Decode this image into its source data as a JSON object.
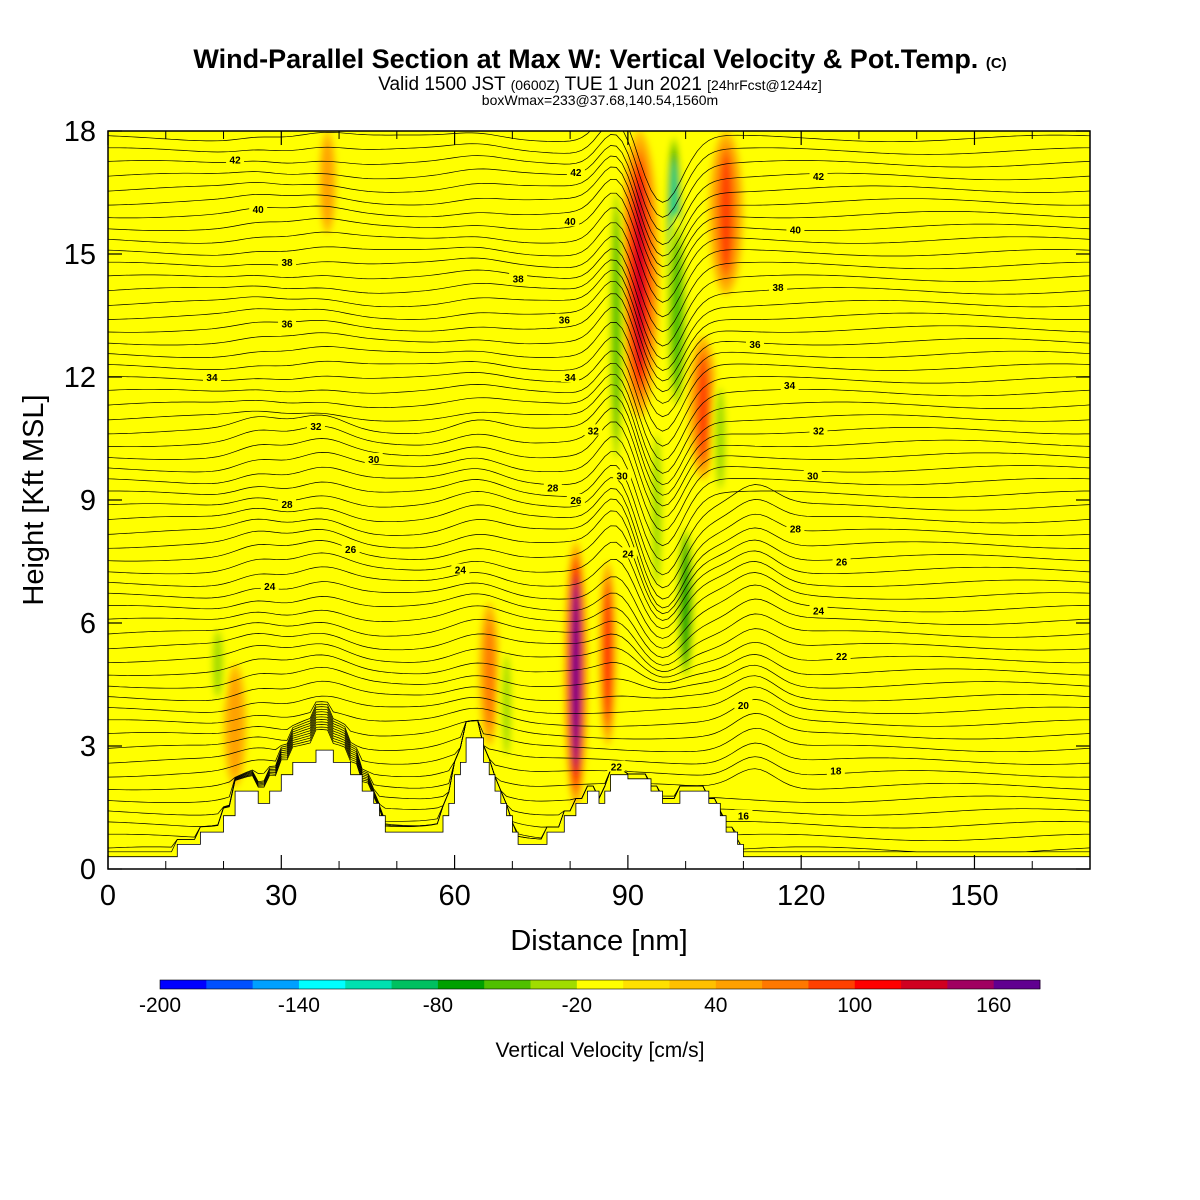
{
  "header": {
    "title_main": "Wind-Parallel Section at Max W: Vertical Velocity & Pot.Temp.",
    "title_mark": "(C)",
    "subtitle_a": "Valid 1500 JST",
    "subtitle_b": "(0600Z)",
    "subtitle_c": "TUE 1 Jun 2021",
    "subtitle_d": "[24hrFcst@1244z]",
    "subtitle2": "boxWmax=233@37.68,140.54,1560m"
  },
  "colorbar": {
    "label": "Vertical Velocity [cm/s]",
    "tick_labels": [
      "-200",
      "-140",
      "-80",
      "-20",
      "40",
      "100",
      "160"
    ],
    "colors": [
      "#0000ff",
      "#0050ff",
      "#00a0ff",
      "#00ffff",
      "#00e0b0",
      "#00c060",
      "#00a000",
      "#50c000",
      "#a0dc00",
      "#ffff00",
      "#ffe000",
      "#ffc000",
      "#ffa000",
      "#ff7800",
      "#ff4000",
      "#ff0000",
      "#d00020",
      "#a00060",
      "#600090"
    ]
  },
  "chart_data": {
    "type": "heatmap",
    "title": "Wind-Parallel Section at Max W: Vertical Velocity & Pot.Temp.",
    "xlabel": "Distance [nm]",
    "ylabel": "Height [Kft MSL]",
    "xlim": [
      0,
      170
    ],
    "ylim": [
      0,
      18
    ],
    "xticks": [
      0,
      30,
      60,
      90,
      120,
      150
    ],
    "yticks": [
      0,
      3,
      6,
      9,
      12,
      15,
      18
    ],
    "x_tick_labels": [
      "0",
      "30",
      "60",
      "90",
      "120",
      "150"
    ],
    "y_tick_labels": [
      "0",
      "3",
      "6",
      "9",
      "12",
      "15",
      "18"
    ],
    "fill_variable": "Vertical Velocity [cm/s]",
    "contour_variable": "Pot.Temp.",
    "contour_levels": [
      16,
      18,
      20,
      22,
      24,
      26,
      28,
      30,
      32,
      34,
      36,
      38,
      40,
      42
    ],
    "max_w_cm_s": 233,
    "terrain": [
      [
        0,
        0.3
      ],
      [
        12,
        0.3
      ],
      [
        12,
        0.6
      ],
      [
        16,
        0.6
      ],
      [
        16,
        0.9
      ],
      [
        20,
        0.9
      ],
      [
        20,
        1.3
      ],
      [
        22,
        1.3
      ],
      [
        22,
        1.9
      ],
      [
        26,
        1.9
      ],
      [
        26,
        1.6
      ],
      [
        28,
        1.6
      ],
      [
        28,
        1.9
      ],
      [
        30,
        1.9
      ],
      [
        30,
        2.3
      ],
      [
        32,
        2.3
      ],
      [
        32,
        2.6
      ],
      [
        36,
        2.6
      ],
      [
        36,
        2.9
      ],
      [
        39,
        2.9
      ],
      [
        39,
        2.6
      ],
      [
        42,
        2.6
      ],
      [
        42,
        2.3
      ],
      [
        44,
        2.3
      ],
      [
        44,
        1.9
      ],
      [
        46,
        1.9
      ],
      [
        46,
        1.6
      ],
      [
        47,
        1.6
      ],
      [
        47,
        1.3
      ],
      [
        48,
        1.3
      ],
      [
        48,
        0.9
      ],
      [
        58,
        0.9
      ],
      [
        58,
        1.3
      ],
      [
        59,
        1.3
      ],
      [
        59,
        1.6
      ],
      [
        60,
        1.6
      ],
      [
        60,
        2.3
      ],
      [
        61,
        2.3
      ],
      [
        61,
        2.6
      ],
      [
        62,
        2.6
      ],
      [
        62,
        3.2
      ],
      [
        65,
        3.2
      ],
      [
        65,
        2.6
      ],
      [
        66,
        2.6
      ],
      [
        66,
        2.3
      ],
      [
        67,
        2.3
      ],
      [
        67,
        1.9
      ],
      [
        68,
        1.9
      ],
      [
        68,
        1.6
      ],
      [
        69,
        1.6
      ],
      [
        69,
        1.3
      ],
      [
        70,
        1.3
      ],
      [
        70,
        0.9
      ],
      [
        71,
        0.9
      ],
      [
        71,
        0.6
      ],
      [
        76,
        0.6
      ],
      [
        76,
        0.9
      ],
      [
        79,
        0.9
      ],
      [
        79,
        1.3
      ],
      [
        81,
        1.3
      ],
      [
        81,
        1.6
      ],
      [
        83,
        1.6
      ],
      [
        83,
        1.9
      ],
      [
        85,
        1.9
      ],
      [
        85,
        1.6
      ],
      [
        86,
        1.6
      ],
      [
        86,
        1.9
      ],
      [
        87,
        1.9
      ],
      [
        87,
        2.3
      ],
      [
        90,
        2.3
      ],
      [
        90,
        2.2
      ],
      [
        94,
        2.2
      ],
      [
        94,
        1.9
      ],
      [
        96,
        1.9
      ],
      [
        96,
        1.6
      ],
      [
        99,
        1.6
      ],
      [
        99,
        1.9
      ],
      [
        104,
        1.9
      ],
      [
        104,
        1.6
      ],
      [
        106,
        1.6
      ],
      [
        106,
        1.3
      ],
      [
        107,
        1.3
      ],
      [
        107,
        0.9
      ],
      [
        109,
        0.9
      ],
      [
        109,
        0.6
      ],
      [
        110,
        0.6
      ],
      [
        110,
        0.3
      ],
      [
        170,
        0.3
      ]
    ],
    "contour_labels": [
      {
        "level": "42",
        "x": 22,
        "y": 17.3
      },
      {
        "level": "40",
        "x": 26,
        "y": 16.1
      },
      {
        "level": "38",
        "x": 31,
        "y": 14.8
      },
      {
        "level": "36",
        "x": 31,
        "y": 13.3
      },
      {
        "level": "34",
        "x": 18,
        "y": 12.0
      },
      {
        "level": "32",
        "x": 36,
        "y": 10.8
      },
      {
        "level": "30",
        "x": 46,
        "y": 10.0
      },
      {
        "level": "28",
        "x": 31,
        "y": 8.9
      },
      {
        "level": "26",
        "x": 42,
        "y": 7.8
      },
      {
        "level": "24",
        "x": 28,
        "y": 6.9
      },
      {
        "level": "24",
        "x": 61,
        "y": 7.3
      },
      {
        "level": "42",
        "x": 81,
        "y": 17.0
      },
      {
        "level": "40",
        "x": 80,
        "y": 15.8
      },
      {
        "level": "38",
        "x": 71,
        "y": 14.4
      },
      {
        "level": "36",
        "x": 79,
        "y": 13.4
      },
      {
        "level": "34",
        "x": 80,
        "y": 12.0
      },
      {
        "level": "32",
        "x": 84,
        "y": 10.7
      },
      {
        "level": "30",
        "x": 89,
        "y": 9.6
      },
      {
        "level": "28",
        "x": 77,
        "y": 9.3
      },
      {
        "level": "26",
        "x": 81,
        "y": 9.0
      },
      {
        "level": "24",
        "x": 90,
        "y": 7.7
      },
      {
        "level": "22",
        "x": 88,
        "y": 2.5
      },
      {
        "level": "42",
        "x": 123,
        "y": 16.9
      },
      {
        "level": "40",
        "x": 119,
        "y": 15.6
      },
      {
        "level": "38",
        "x": 116,
        "y": 14.2
      },
      {
        "level": "36",
        "x": 112,
        "y": 12.8
      },
      {
        "level": "34",
        "x": 118,
        "y": 11.8
      },
      {
        "level": "32",
        "x": 123,
        "y": 10.7
      },
      {
        "level": "30",
        "x": 122,
        "y": 9.6
      },
      {
        "level": "28",
        "x": 119,
        "y": 8.3
      },
      {
        "level": "26",
        "x": 127,
        "y": 7.5
      },
      {
        "level": "24",
        "x": 123,
        "y": 6.3
      },
      {
        "level": "22",
        "x": 127,
        "y": 5.2
      },
      {
        "level": "20",
        "x": 110,
        "y": 4.0
      },
      {
        "level": "18",
        "x": 126,
        "y": 2.4
      },
      {
        "level": "16",
        "x": 110,
        "y": 1.3
      }
    ],
    "w_features": [
      {
        "x": 92,
        "y0": 11,
        "y1": 18,
        "w": 3.5,
        "v": 120
      },
      {
        "x": 98,
        "y0": 13.5,
        "y1": 18,
        "w": 1.5,
        "v": -120
      },
      {
        "x": 98.5,
        "y0": 11,
        "y1": 16,
        "w": 2.2,
        "v": -60
      },
      {
        "x": 88,
        "y0": 9.5,
        "y1": 17,
        "w": 1.5,
        "v": -60
      },
      {
        "x": 107,
        "y0": 14,
        "y1": 18,
        "w": 3,
        "v": 80
      },
      {
        "x": 103,
        "y0": 9.5,
        "y1": 13,
        "w": 2.5,
        "v": 80
      },
      {
        "x": 81,
        "y0": 1.5,
        "y1": 8,
        "w": 2,
        "v": 180
      },
      {
        "x": 86.5,
        "y0": 3,
        "y1": 7.5,
        "w": 1.5,
        "v": 110
      },
      {
        "x": 100,
        "y0": 4.5,
        "y1": 8.5,
        "w": 1.8,
        "v": -80
      },
      {
        "x": 95,
        "y0": 6.5,
        "y1": 11,
        "w": 1.5,
        "v": -40
      },
      {
        "x": 106,
        "y0": 9,
        "y1": 12,
        "w": 1.5,
        "v": -40
      },
      {
        "x": 109,
        "y0": 6,
        "y1": 7.5,
        "w": 1.5,
        "v": -30
      },
      {
        "x": 66,
        "y0": 3,
        "y1": 6.5,
        "w": 1.8,
        "v": 60
      },
      {
        "x": 69,
        "y0": 2.5,
        "y1": 5.5,
        "w": 1.3,
        "v": -40
      },
      {
        "x": 52,
        "y0": 3,
        "y1": 5.5,
        "w": 2.5,
        "v": -30
      },
      {
        "x": 22,
        "y0": 2,
        "y1": 5,
        "w": 2,
        "v": 50
      },
      {
        "x": 19,
        "y0": 4,
        "y1": 6,
        "w": 1.5,
        "v": -40
      },
      {
        "x": 38,
        "y0": 15.5,
        "y1": 18,
        "w": 1.5,
        "v": 40
      },
      {
        "x": 43,
        "y0": 15.5,
        "y1": 18,
        "w": 1.2,
        "v": -30
      }
    ]
  }
}
